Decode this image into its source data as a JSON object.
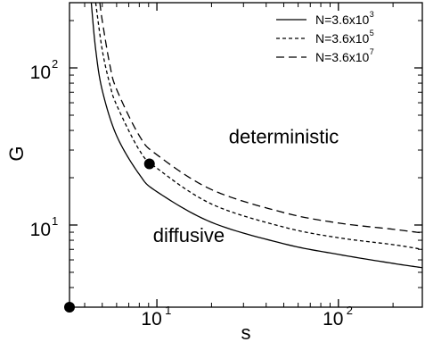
{
  "chart_data": {
    "type": "line",
    "xscale": "log",
    "yscale": "log",
    "xlim": [
      3.3,
      290
    ],
    "ylim": [
      3.0,
      260
    ],
    "xlabel": "s",
    "ylabel": "G",
    "x_ticks": [
      {
        "value": 10,
        "base": "10",
        "exp": "1"
      },
      {
        "value": 100,
        "base": "10",
        "exp": "2"
      }
    ],
    "y_ticks": [
      {
        "value": 10,
        "base": "10",
        "exp": "1"
      },
      {
        "value": 100,
        "base": "10",
        "exp": "2"
      }
    ],
    "series": [
      {
        "name": "N=3.6x10",
        "exp": "3",
        "dash": "solid",
        "x": [
          4.35,
          4.6,
          5.0,
          6.0,
          8.0,
          10,
          20,
          50,
          100,
          200,
          290
        ],
        "y": [
          260,
          131,
          72,
          37,
          21,
          16.3,
          10.4,
          7.6,
          6.5,
          5.7,
          5.35
        ]
      },
      {
        "name": "N=3.6x10",
        "exp": "5",
        "dash": "short",
        "x": [
          4.6,
          5.0,
          5.5,
          6.0,
          8.0,
          10,
          20,
          50,
          100,
          200,
          290
        ],
        "y": [
          260,
          130,
          79,
          58,
          30,
          23,
          13.6,
          9.7,
          8.3,
          7.5,
          7.0
        ]
      },
      {
        "name": "N=3.6x10",
        "exp": "7",
        "dash": "long",
        "x": [
          4.85,
          5.0,
          5.5,
          6.0,
          8.0,
          10,
          20,
          50,
          100,
          200,
          290
        ],
        "y": [
          260,
          200,
          105,
          73,
          37,
          28,
          16.8,
          12.0,
          10.3,
          9.4,
          8.9
        ]
      }
    ],
    "points": [
      {
        "x": 9.1,
        "y": 24.5
      },
      {
        "x": 3.3,
        "y": 3.0
      }
    ],
    "annotations": [
      {
        "text": "deterministic",
        "x": 50,
        "y": 33
      },
      {
        "text": "diffusive",
        "x": 15,
        "y": 7.8
      }
    ],
    "legend_position": "top-right",
    "grid": false
  }
}
